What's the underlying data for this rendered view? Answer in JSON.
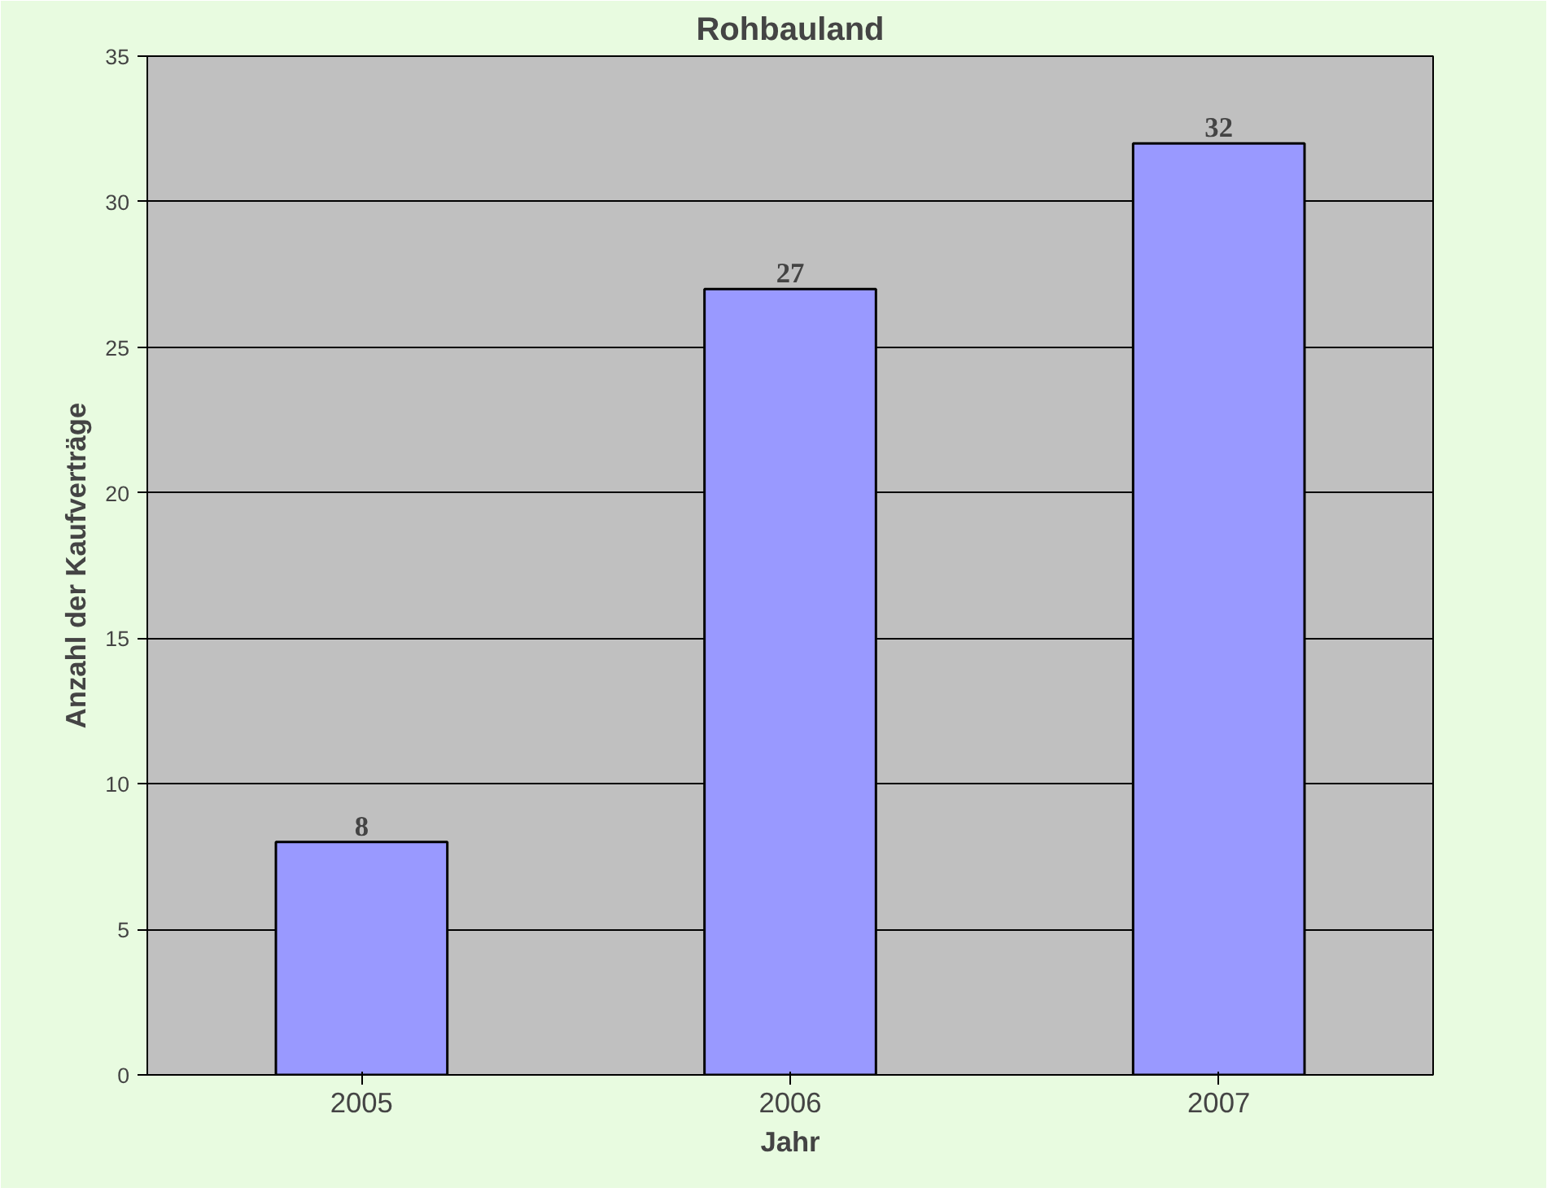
{
  "chart_data": {
    "type": "bar",
    "title": "Rohbauland",
    "xlabel": "Jahr",
    "ylabel": "Anzahl der Kaufverträge",
    "categories": [
      "2005",
      "2006",
      "2007"
    ],
    "values": [
      8,
      27,
      32
    ],
    "color": "#9999ff",
    "ylim": [
      0,
      35
    ],
    "yticks": [
      0,
      5,
      10,
      15,
      20,
      25,
      30,
      35
    ],
    "grid": "y",
    "data_labels": true
  }
}
